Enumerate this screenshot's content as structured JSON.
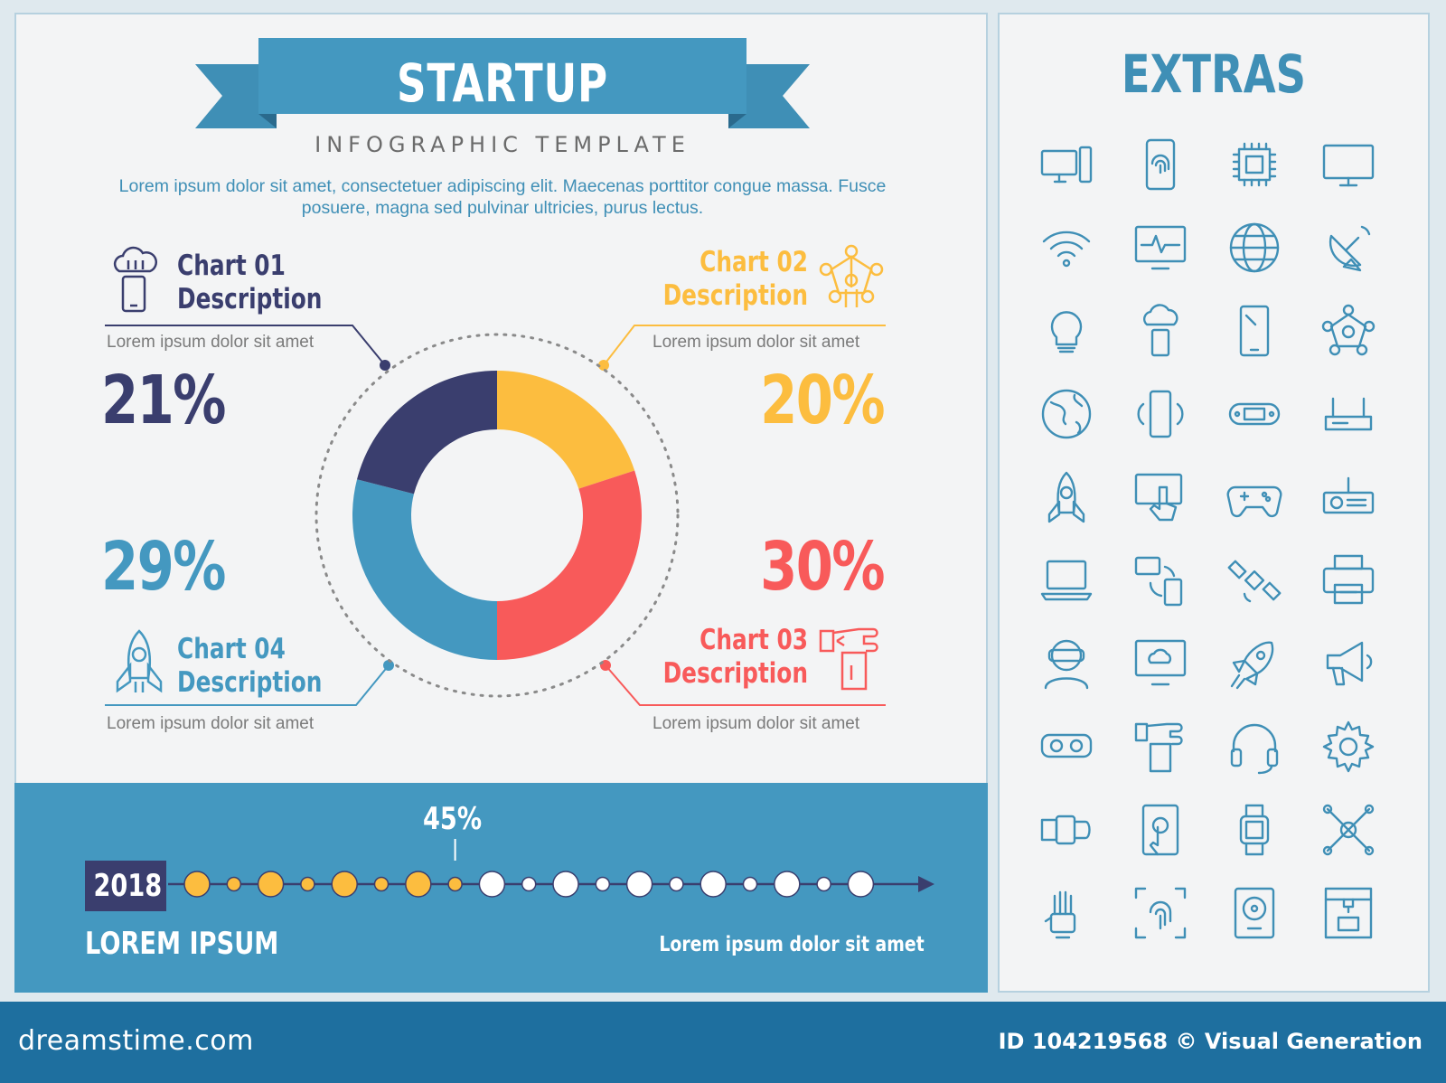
{
  "header": {
    "title": "STARTUP",
    "subtitle": "INFOGRAPHIC TEMPLATE",
    "intro": "Lorem ipsum dolor sit amet, consectetuer adipiscing elit. Maecenas porttitor congue massa. Fusce posuere, magna sed pulvinar ultricies, purus lectus."
  },
  "callouts": [
    {
      "title_line1": "Chart 01",
      "title_line2": "Description",
      "sub": "Lorem ipsum dolor sit amet",
      "percent": "21%",
      "icon": "cloud-phone-icon",
      "color": "#3a3e6e"
    },
    {
      "title_line1": "Chart 02",
      "title_line2": "Description",
      "sub": "Lorem ipsum dolor sit amet",
      "percent": "20%",
      "icon": "network-icon",
      "color": "#fcbd3f"
    },
    {
      "title_line1": "Chart 03",
      "title_line2": "Description",
      "sub": "Lorem ipsum dolor sit amet",
      "percent": "30%",
      "icon": "hand-touch-icon",
      "color": "#f85a5a"
    },
    {
      "title_line1": "Chart 04",
      "title_line2": "Description",
      "sub": "Lorem ipsum dolor sit amet",
      "percent": "29%",
      "icon": "rocket-icon",
      "color": "#4498c0"
    }
  ],
  "chart_data": {
    "type": "pie",
    "donut": true,
    "categories": [
      "Chart 02",
      "Chart 03",
      "Chart 04",
      "Chart 01"
    ],
    "values": [
      20,
      30,
      29,
      21
    ],
    "colors": [
      "#fcbd3f",
      "#f85a5a",
      "#4498c0",
      "#3a3e6e"
    ],
    "title": "",
    "legend": "none"
  },
  "timeline": {
    "year": "2018",
    "label": "LOREM IPSUM",
    "caption": "Lorem ipsum dolor sit amet",
    "progress_label": "45%",
    "progress": 0.45,
    "filled_color": "#fcbd3f",
    "empty_color": "#ffffff"
  },
  "extras": {
    "title": "EXTRAS",
    "icons": [
      "desktop-computer-icon",
      "smartphone-fingerprint-icon",
      "processor-chip-icon",
      "monitor-icon",
      "wifi-icon",
      "heartbeat-monitor-icon",
      "www-globe-icon",
      "satellite-dish-icon",
      "light-bulb-icon",
      "cloud-phone-icon",
      "tablet-icon",
      "network-icon",
      "earth-icon",
      "vibrating-phone-icon",
      "game-console-icon",
      "router-icon",
      "rocket-icon",
      "touch-screen-icon",
      "gamepad-icon",
      "projector-icon",
      "laptop-icon",
      "device-sync-icon",
      "satellite-icon",
      "printer-icon",
      "vr-user-icon",
      "cloud-monitor-icon",
      "rocket-launch-icon",
      "megaphone-icon",
      "vr-goggles-icon",
      "hand-touch-icon",
      "headphones-icon",
      "gear-icon",
      "smartwatch-wrist-icon",
      "touch-tablet-icon",
      "smartwatch-icon",
      "molecule-network-icon",
      "robot-hand-icon",
      "fingerprint-scan-icon",
      "hard-drive-icon",
      "3d-printer-icon"
    ]
  },
  "footer": {
    "site": "dreamstime.com",
    "credit": "ID 104219568 © Visual Generation"
  },
  "colors": {
    "accent": "#4498c0",
    "navy": "#3a3e6e",
    "yellow": "#fcbd3f",
    "red": "#f85a5a",
    "footer": "#1e6f9f"
  }
}
